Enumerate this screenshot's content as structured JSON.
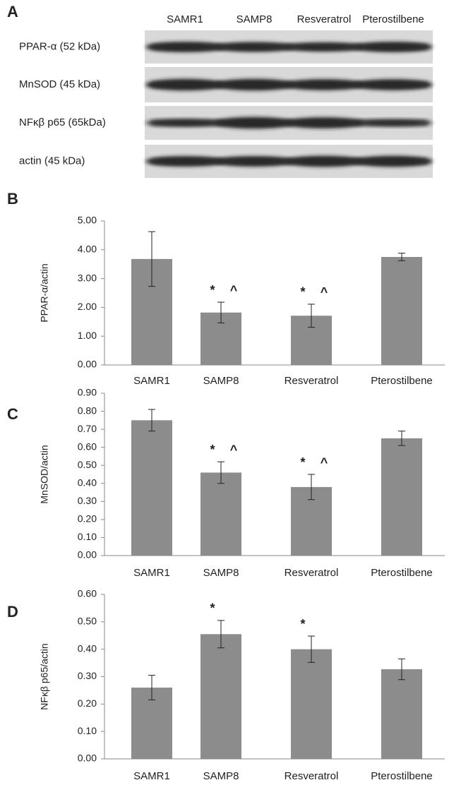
{
  "blot": {
    "panel_label": "A",
    "lanes": [
      "SAMR1",
      "SAMP8",
      "Resveratrol",
      "Pterostilbene"
    ],
    "rows": [
      "PPAR-α (52 kDa)",
      "MnSOD (45 kDa)",
      "NFκβ p65 (65kDa)",
      "actin (45 kDa)"
    ]
  },
  "chart_data": [
    {
      "panel_label": "B",
      "type": "bar",
      "y_label": "PPAR-α/actin",
      "categories": [
        "SAMR1",
        "SAMP8",
        "Resveratrol",
        "Pterostilbene"
      ],
      "values": [
        3.68,
        1.82,
        1.71,
        3.75
      ],
      "errors": [
        0.95,
        0.36,
        0.4,
        0.13
      ],
      "annotations": [
        [],
        [
          "*",
          "^"
        ],
        [
          "*",
          "^"
        ],
        []
      ],
      "color": "#8c8c8c",
      "ylim": [
        0,
        5
      ],
      "yticks": [
        {
          "value": 0,
          "label": "0.00"
        },
        {
          "value": 1,
          "label": "1.00"
        },
        {
          "value": 2,
          "label": "2.00"
        },
        {
          "value": 3,
          "label": "3.00"
        },
        {
          "value": 4,
          "label": "4.00"
        },
        {
          "value": 5,
          "label": "5.00"
        }
      ]
    },
    {
      "panel_label": "C",
      "type": "bar",
      "y_label": "MnSOD/actin",
      "categories": [
        "SAMR1",
        "SAMP8",
        "Resveratrol",
        "Pterostilbene"
      ],
      "values": [
        0.75,
        0.46,
        0.38,
        0.65
      ],
      "errors": [
        0.06,
        0.06,
        0.07,
        0.04
      ],
      "annotations": [
        [],
        [
          "*",
          "^"
        ],
        [
          "*",
          "^"
        ],
        []
      ],
      "color": "#8c8c8c",
      "ylim": [
        0,
        0.9
      ],
      "yticks": [
        {
          "value": 0,
          "label": "0.00"
        },
        {
          "value": 0.1,
          "label": "0.10"
        },
        {
          "value": 0.2,
          "label": "0.20"
        },
        {
          "value": 0.3,
          "label": "0.30"
        },
        {
          "value": 0.4,
          "label": "0.40"
        },
        {
          "value": 0.5,
          "label": "0.50"
        },
        {
          "value": 0.6,
          "label": "0.60"
        },
        {
          "value": 0.7,
          "label": "0.70"
        },
        {
          "value": 0.8,
          "label": "0.80"
        },
        {
          "value": 0.9,
          "label": "0.90"
        }
      ]
    },
    {
      "panel_label": "D",
      "type": "bar",
      "y_label": "NFκβ p65/actin",
      "categories": [
        "SAMR1",
        "SAMP8",
        "Resveratrol",
        "Pterostilbene"
      ],
      "values": [
        0.26,
        0.455,
        0.4,
        0.327
      ],
      "errors": [
        0.045,
        0.05,
        0.048,
        0.038
      ],
      "annotations": [
        [],
        [
          "*"
        ],
        [
          "*"
        ],
        []
      ],
      "color": "#8c8c8c",
      "ylim": [
        0,
        0.6
      ],
      "yticks": [
        {
          "value": 0,
          "label": "0.00"
        },
        {
          "value": 0.1,
          "label": "0.10"
        },
        {
          "value": 0.2,
          "label": "0.20"
        },
        {
          "value": 0.3,
          "label": "0.30"
        },
        {
          "value": 0.4,
          "label": "0.40"
        },
        {
          "value": 0.5,
          "label": "0.50"
        },
        {
          "value": 0.6,
          "label": "0.60"
        }
      ]
    }
  ]
}
